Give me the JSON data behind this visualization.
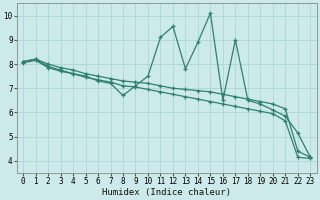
{
  "xlabel": "Humidex (Indice chaleur)",
  "background_color": "#cdeaea",
  "grid_color": "#b0d8d8",
  "line_color": "#2e7f6e",
  "xlim": [
    -0.5,
    23.5
  ],
  "ylim": [
    3.5,
    10.5
  ],
  "x_ticks": [
    0,
    1,
    2,
    3,
    4,
    5,
    6,
    7,
    8,
    9,
    10,
    11,
    12,
    13,
    14,
    15,
    16,
    17,
    18,
    19,
    20,
    21,
    22,
    23
  ],
  "y_ticks": [
    4,
    5,
    6,
    7,
    8,
    9,
    10
  ],
  "series": [
    {
      "x": [
        0,
        1,
        2,
        3,
        4,
        5,
        6,
        7,
        8,
        9,
        10,
        11,
        12,
        13,
        14,
        15,
        16,
        17,
        18,
        19,
        20,
        21,
        22,
        23
      ],
      "y": [
        8.1,
        8.2,
        7.9,
        7.75,
        7.6,
        7.5,
        7.3,
        7.2,
        6.7,
        7.1,
        7.5,
        9.1,
        9.55,
        7.8,
        8.9,
        10.1,
        6.5,
        9.0,
        6.5,
        6.35,
        6.1,
        5.85,
        5.15,
        4.15
      ]
    },
    {
      "x": [
        0,
        1,
        2,
        3,
        4,
        5,
        6,
        7,
        8,
        9,
        10,
        11,
        12,
        13,
        14,
        15,
        16,
        17,
        18,
        19,
        20,
        21,
        22,
        23
      ],
      "y": [
        8.1,
        8.2,
        8.0,
        7.85,
        7.75,
        7.6,
        7.5,
        7.4,
        7.3,
        7.25,
        7.2,
        7.1,
        7.0,
        6.95,
        6.9,
        6.85,
        6.75,
        6.65,
        6.55,
        6.45,
        6.35,
        6.15,
        4.4,
        4.15
      ]
    },
    {
      "x": [
        0,
        1,
        2,
        3,
        4,
        5,
        6,
        7,
        8,
        9,
        10,
        11,
        12,
        13,
        14,
        15,
        16,
        17,
        18,
        19,
        20,
        21,
        22,
        23
      ],
      "y": [
        8.05,
        8.15,
        7.85,
        7.7,
        7.6,
        7.45,
        7.35,
        7.25,
        7.1,
        7.05,
        6.95,
        6.85,
        6.75,
        6.65,
        6.55,
        6.45,
        6.35,
        6.25,
        6.15,
        6.05,
        5.95,
        5.65,
        4.15,
        4.1
      ]
    }
  ]
}
